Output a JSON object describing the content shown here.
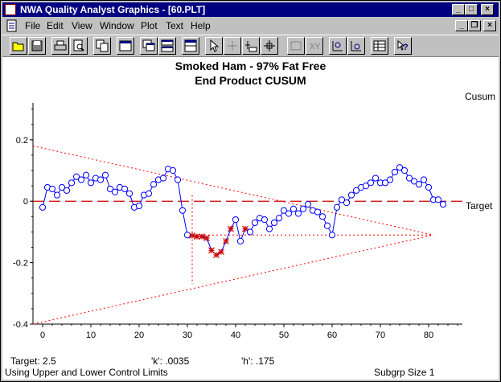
{
  "window": {
    "title": "NWA Quality Analyst Graphics - [60.PLT]",
    "controls": [
      "_",
      "□",
      "×"
    ]
  },
  "menu": {
    "items": [
      "File",
      "Edit",
      "View",
      "Window",
      "Plot",
      "Text",
      "Help"
    ],
    "mdi_controls": [
      "_",
      "❐",
      "×"
    ]
  },
  "toolbar": {
    "icons": [
      "open-folder-icon",
      "save-icon",
      "print-icon",
      "print-preview-icon",
      "copy-icon",
      "window-icon",
      "cascade-icon",
      "tile-icon",
      "pointer-icon",
      "crosshair-icon",
      "text-tool-icon",
      "marker-tool-icon",
      "disabled-edit-icon",
      "disabled-xy-icon",
      "add-point-icon",
      "move-point-icon",
      "table-icon",
      "help-icon"
    ]
  },
  "plot": {
    "title_line1": "Smoked Ham - 97% Fat Free",
    "title_line2": "End Product CUSUM",
    "y_axis_label": "Cusum",
    "target_label": "Target",
    "footer": {
      "target": "Target:  2.5",
      "k": "'k':  .0035",
      "h": "'h':  .175",
      "limits_note": "Using Upper and Lower Control Limits",
      "subgroup": "Subgrp Size 1"
    }
  },
  "colors": {
    "data_line": "#0000ff",
    "target_line": "#cc0000",
    "vmask": "#ff0000",
    "out_of_control": "#cc0000"
  },
  "chart_data": {
    "type": "line",
    "title": "Smoked Ham - 97% Fat Free",
    "subtitle": "End Product CUSUM",
    "ylabel": "Cusum",
    "xlabel": "",
    "xlim": [
      -2,
      87
    ],
    "ylim": [
      -0.4,
      0.32
    ],
    "x_ticks": [
      0,
      10,
      20,
      30,
      40,
      50,
      60,
      70,
      80
    ],
    "y_ticks": [
      0.2,
      0,
      -0.2,
      -0.4
    ],
    "y_tick_labels": [
      "0.2",
      "0",
      "-0.2",
      "-0.4"
    ],
    "target": 0,
    "series": [
      {
        "values": [
          -0.02,
          0.045,
          0.04,
          0.02,
          0.045,
          0.035,
          0.06,
          0.08,
          0.07,
          0.085,
          0.06,
          0.075,
          0.07,
          0.085,
          0.04,
          0.03,
          0.045,
          0.04,
          0.025,
          -0.02,
          -0.015,
          0.02,
          0.025,
          0.055,
          0.07,
          0.075,
          0.105,
          0.1,
          0.07,
          -0.03,
          -0.11,
          -0.112,
          -0.115,
          -0.115,
          -0.12,
          -0.16,
          -0.175,
          -0.165,
          -0.13,
          -0.09,
          -0.06,
          -0.13,
          -0.09,
          -0.1,
          -0.07,
          -0.055,
          -0.06,
          -0.09,
          -0.07,
          -0.055,
          -0.03,
          -0.04,
          -0.025,
          -0.04,
          -0.025,
          -0.01,
          -0.03,
          -0.035,
          -0.05,
          -0.08,
          -0.11,
          -0.02,
          0.005,
          -0.005,
          0.02,
          0.035,
          0.045,
          0.05,
          0.06,
          0.075,
          0.06,
          0.06,
          0.07,
          0.095,
          0.11,
          0.1,
          0.075,
          0.065,
          0.055,
          0.07,
          0.045,
          0.005,
          0.005,
          -0.01
        ],
        "out_of_control_indices": [
          31,
          32,
          33,
          34,
          35,
          36,
          37,
          38,
          39,
          42
        ]
      }
    ],
    "v_mask": {
      "vertex": [
        81,
        -0.11
      ],
      "upper_start": [
        -2,
        0.18
      ],
      "lower_start": [
        -2,
        -0.4
      ],
      "arm_intersections": [
        [
          31,
          0.02
        ],
        [
          31,
          -0.27
        ]
      ],
      "horizontal_y": -0.11
    }
  }
}
